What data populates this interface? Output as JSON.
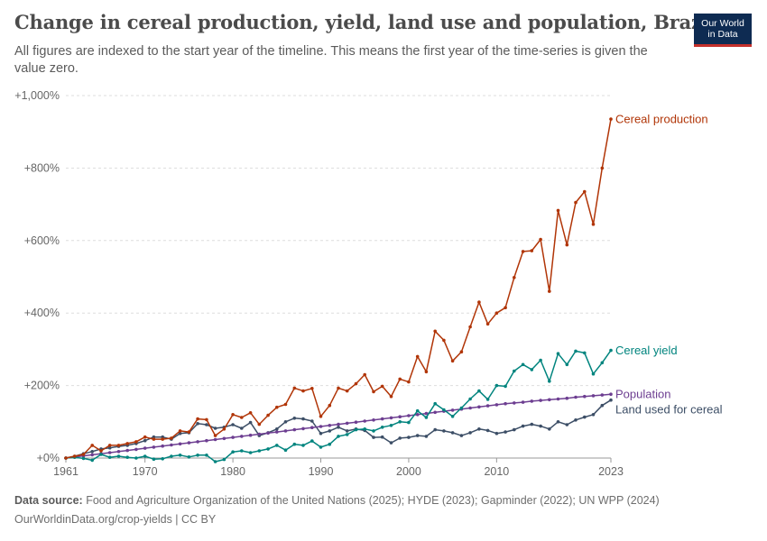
{
  "header": {
    "title": "Change in cereal production, yield, land use and population, Brazil",
    "subtitle": "All figures are indexed to the start year of the timeline. This means the first year of the time-series is given the value zero.",
    "logo_text": "Our World in Data"
  },
  "footer": {
    "source_label": "Data source:",
    "source_text": "Food and Agriculture Organization of the United Nations (2025); HYDE (2023); Gapminder (2022); UN WPP (2024)",
    "url_line": "OurWorldinData.org/crop-yields | CC BY"
  },
  "colors": {
    "cereal_production": "#b13507",
    "cereal_yield": "#00847e",
    "population": "#6d3e91",
    "land_used": "#3c4e66",
    "grid": "#dddddd",
    "axis": "#999999"
  },
  "chart_data": {
    "type": "line",
    "title": "Change in cereal production, yield, land use and population, Brazil",
    "xlabel": "",
    "ylabel": "",
    "xlim": [
      1961,
      2023
    ],
    "ylim": [
      0,
      1000
    ],
    "x_ticks": [
      "1961",
      "1970",
      "1980",
      "1990",
      "2000",
      "2010",
      "2023"
    ],
    "y_ticks": [
      "+0%",
      "+200%",
      "+400%",
      "+600%",
      "+800%",
      "+1,000%"
    ],
    "y_tick_values": [
      0,
      200,
      400,
      600,
      800,
      1000
    ],
    "grid": "horizontal dashed",
    "labels": "end of line",
    "x": [
      1961,
      1962,
      1963,
      1964,
      1965,
      1966,
      1967,
      1968,
      1969,
      1970,
      1971,
      1972,
      1973,
      1974,
      1975,
      1976,
      1977,
      1978,
      1979,
      1980,
      1981,
      1982,
      1983,
      1984,
      1985,
      1986,
      1987,
      1988,
      1989,
      1990,
      1991,
      1992,
      1993,
      1994,
      1995,
      1996,
      1997,
      1998,
      1999,
      2000,
      2001,
      2002,
      2003,
      2004,
      2005,
      2006,
      2007,
      2008,
      2009,
      2010,
      2011,
      2012,
      2013,
      2014,
      2015,
      2016,
      2017,
      2018,
      2019,
      2020,
      2021,
      2022,
      2023
    ],
    "series": [
      {
        "name": "Cereal production",
        "color": "#b13507",
        "values": [
          0,
          5,
          10,
          35,
          20,
          35,
          35,
          40,
          45,
          58,
          52,
          52,
          55,
          75,
          72,
          108,
          106,
          62,
          80,
          120,
          112,
          125,
          93,
          118,
          140,
          148,
          193,
          185,
          192,
          115,
          145,
          193,
          185,
          205,
          230,
          183,
          198,
          170,
          218,
          210,
          280,
          238,
          350,
          325,
          268,
          293,
          362,
          430,
          370,
          400,
          415,
          498,
          570,
          572,
          603,
          460,
          683,
          588,
          705,
          735,
          645,
          800,
          935
        ]
      },
      {
        "name": "Cereal yield",
        "color": "#00847e",
        "values": [
          0,
          2,
          -1,
          -6,
          10,
          2,
          5,
          2,
          0,
          5,
          -3,
          -2,
          5,
          8,
          3,
          8,
          8,
          -10,
          -4,
          17,
          20,
          15,
          20,
          25,
          35,
          22,
          38,
          35,
          47,
          30,
          38,
          60,
          65,
          78,
          80,
          75,
          85,
          90,
          100,
          98,
          130,
          112,
          150,
          133,
          115,
          138,
          163,
          185,
          162,
          200,
          198,
          240,
          258,
          244,
          270,
          212,
          288,
          258,
          295,
          290,
          232,
          263,
          297
        ]
      },
      {
        "name": "Population",
        "color": "#6d3e91",
        "values": [
          0,
          3,
          6,
          9,
          12,
          15,
          18,
          21,
          24,
          27,
          30,
          33,
          36,
          39,
          42,
          45,
          48,
          51,
          54,
          57,
          60,
          63,
          66,
          69,
          72,
          75,
          78,
          81,
          84,
          87,
          90,
          93,
          96,
          99,
          102,
          105,
          108,
          111,
          114,
          117,
          120,
          123,
          126,
          129,
          132,
          135,
          138,
          141,
          144,
          147,
          150,
          152,
          154,
          157,
          159,
          161,
          163,
          165,
          168,
          170,
          172,
          174,
          176
        ]
      },
      {
        "name": "Land used for cereal",
        "color": "#3c4e66",
        "values": [
          0,
          5,
          12,
          18,
          25,
          28,
          32,
          35,
          40,
          48,
          58,
          58,
          52,
          68,
          70,
          95,
          92,
          82,
          85,
          92,
          82,
          98,
          62,
          70,
          80,
          100,
          110,
          108,
          102,
          68,
          75,
          85,
          75,
          80,
          76,
          57,
          58,
          42,
          55,
          57,
          62,
          60,
          78,
          75,
          70,
          62,
          70,
          80,
          76,
          68,
          72,
          78,
          88,
          93,
          88,
          80,
          100,
          92,
          105,
          113,
          120,
          145,
          160
        ]
      }
    ]
  }
}
